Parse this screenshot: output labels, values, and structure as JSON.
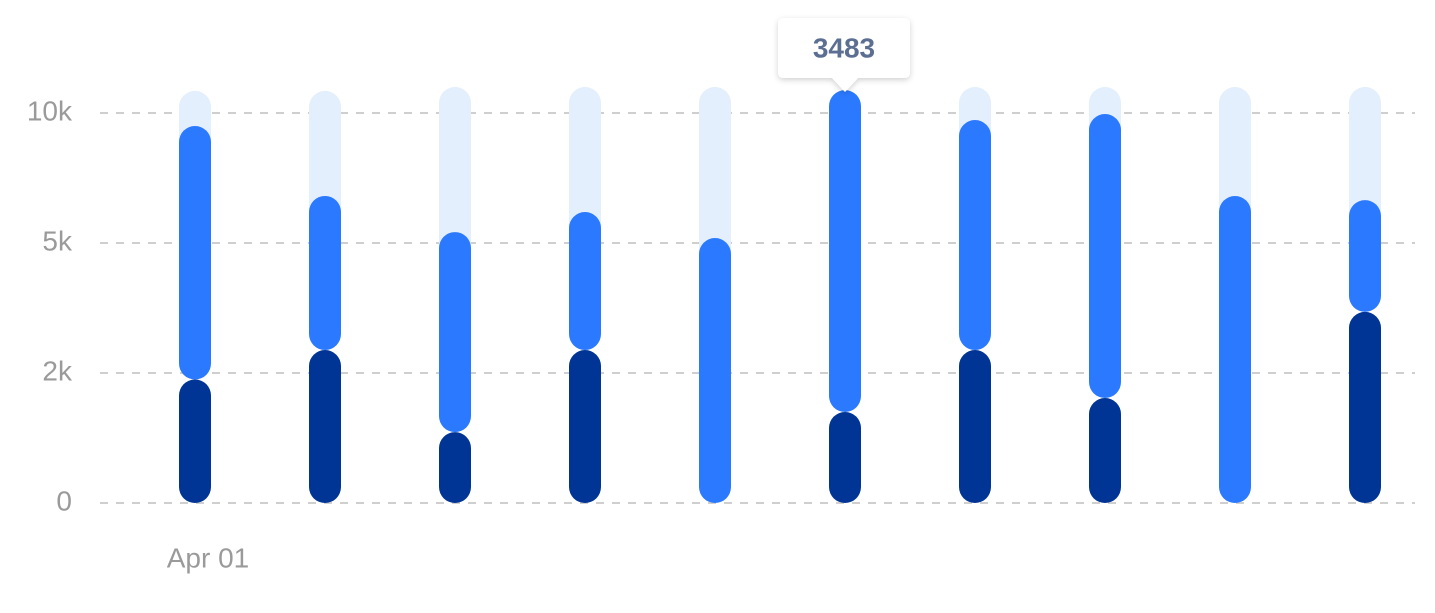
{
  "chart_data": {
    "type": "stacked-bar",
    "categories": [
      "Apr 01",
      null,
      null,
      null,
      null,
      null,
      null,
      null,
      null,
      null
    ],
    "series": [
      {
        "color": "#003595",
        "values": [
          1900,
          2530,
          1090,
          2530,
          0,
          1400,
          2530,
          1615,
          0,
          3410
        ]
      },
      {
        "color": "#2b79ff",
        "values": [
          7600,
          4280,
          4330,
          3660,
          5190,
          9480,
          7200,
          8345,
          6808,
          3240
        ]
      },
      {
        "color": "#e3effc",
        "values": [
          1350,
          4040,
          5580,
          4810,
          5810,
          0,
          1270,
          1040,
          4190,
          4350
        ]
      }
    ],
    "ylim": [
      0,
      11000
    ],
    "yticks": [
      0,
      {
        "value": 2000,
        "label": "2k"
      },
      {
        "value": 5000,
        "label": "5k"
      },
      {
        "value": 10000,
        "label": "10k"
      }
    ],
    "grid": true,
    "tooltip": 3483
  }
}
